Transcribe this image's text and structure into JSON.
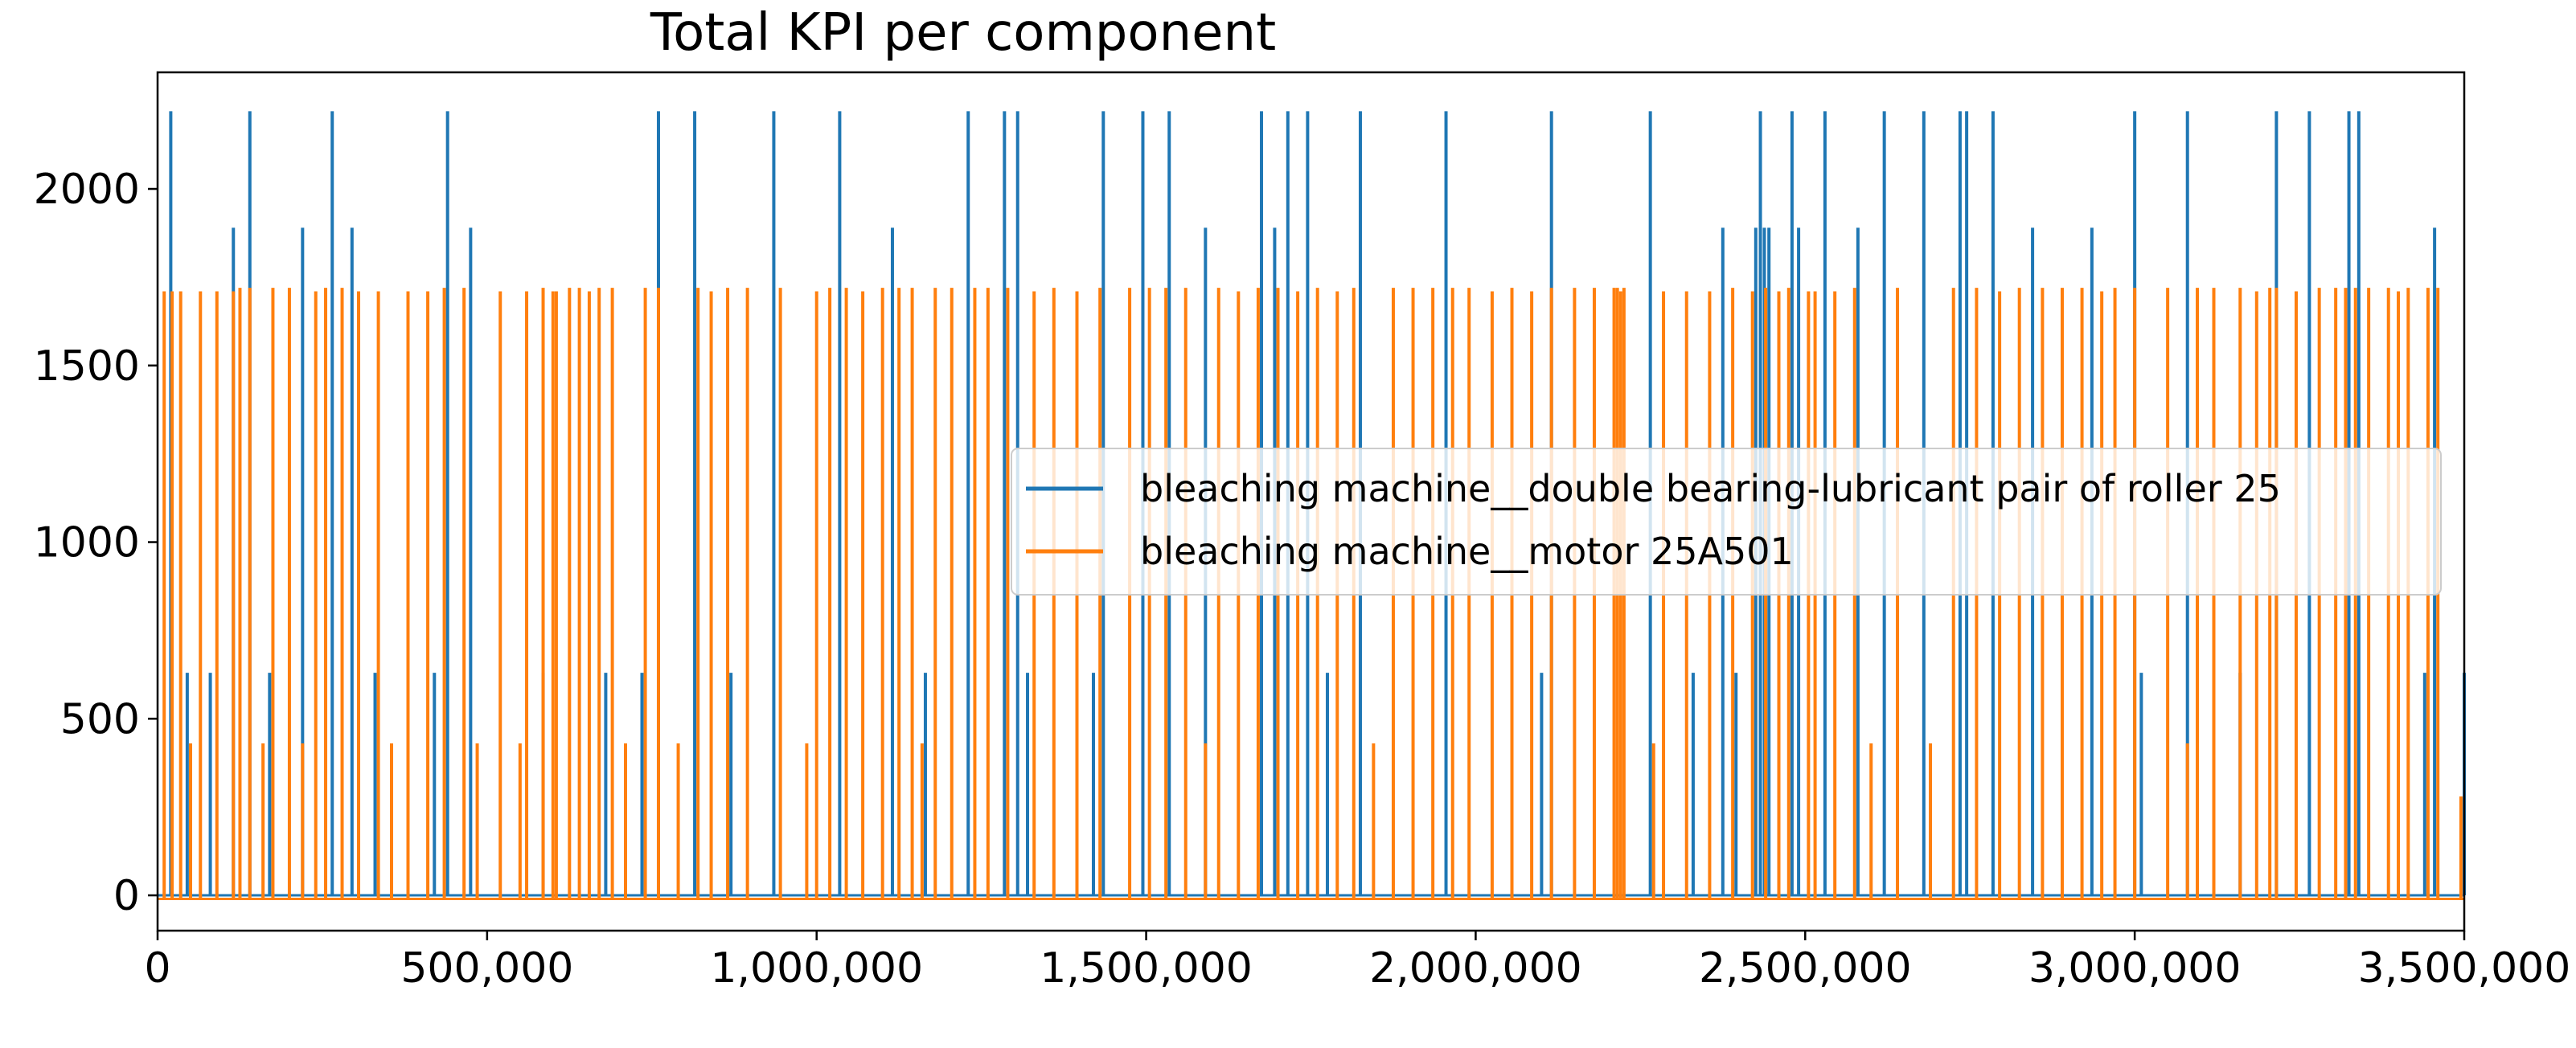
{
  "chart_data": {
    "type": "line",
    "title": "Total KPI per component",
    "xlabel": "",
    "ylabel": "",
    "xlim": [
      0,
      3500000
    ],
    "ylim": [
      -100,
      2330
    ],
    "x_ticks": [
      {
        "value": 0,
        "label": "0"
      },
      {
        "value": 500000,
        "label": "500,000"
      },
      {
        "value": 1000000,
        "label": "1,000,000"
      },
      {
        "value": 1500000,
        "label": "1,500,000"
      },
      {
        "value": 2000000,
        "label": "2,000,000"
      },
      {
        "value": 2500000,
        "label": "2,500,000"
      },
      {
        "value": 3000000,
        "label": "3,000,000"
      },
      {
        "value": 3500000,
        "label": "3,500,000"
      }
    ],
    "y_ticks": [
      {
        "value": 0,
        "label": "0"
      },
      {
        "value": 500,
        "label": "500"
      },
      {
        "value": 1000,
        "label": "1000"
      },
      {
        "value": 1500,
        "label": "1500"
      },
      {
        "value": 2000,
        "label": "2000"
      }
    ],
    "legend_position": "center-right",
    "series": [
      {
        "name": "bleaching machine__double bearing-lubricant pair of roller 25",
        "color": "#1f77b4",
        "baseline": 0,
        "spikes": [
          [
            20000,
            2220
          ],
          [
            45000,
            630
          ],
          [
            80000,
            630
          ],
          [
            115000,
            1890
          ],
          [
            140000,
            2220
          ],
          [
            170000,
            630
          ],
          [
            220000,
            1890
          ],
          [
            265000,
            2220
          ],
          [
            295000,
            1890
          ],
          [
            330000,
            630
          ],
          [
            420000,
            630
          ],
          [
            440000,
            2220
          ],
          [
            475000,
            1890
          ],
          [
            585000,
            630
          ],
          [
            680000,
            630
          ],
          [
            735000,
            630
          ],
          [
            760000,
            2220
          ],
          [
            815000,
            2220
          ],
          [
            870000,
            630
          ],
          [
            935000,
            2220
          ],
          [
            1035000,
            2220
          ],
          [
            1115000,
            1890
          ],
          [
            1165000,
            630
          ],
          [
            1230000,
            2220
          ],
          [
            1285000,
            2220
          ],
          [
            1305000,
            2220
          ],
          [
            1320000,
            630
          ],
          [
            1420000,
            630
          ],
          [
            1435000,
            2220
          ],
          [
            1495000,
            2220
          ],
          [
            1535000,
            2220
          ],
          [
            1590000,
            1890
          ],
          [
            1675000,
            2220
          ],
          [
            1695000,
            1890
          ],
          [
            1715000,
            2220
          ],
          [
            1745000,
            2220
          ],
          [
            1775000,
            630
          ],
          [
            1825000,
            2220
          ],
          [
            1955000,
            2220
          ],
          [
            2100000,
            630
          ],
          [
            2115000,
            2220
          ],
          [
            2265000,
            2220
          ],
          [
            2330000,
            630
          ],
          [
            2375000,
            1890
          ],
          [
            2395000,
            630
          ],
          [
            2425000,
            1890
          ],
          [
            2432000,
            2220
          ],
          [
            2438000,
            1890
          ],
          [
            2445000,
            1890
          ],
          [
            2480000,
            2220
          ],
          [
            2490000,
            1890
          ],
          [
            2530000,
            2220
          ],
          [
            2580000,
            1890
          ],
          [
            2620000,
            2220
          ],
          [
            2680000,
            2220
          ],
          [
            2735000,
            2220
          ],
          [
            2745000,
            2220
          ],
          [
            2785000,
            2220
          ],
          [
            2845000,
            1890
          ],
          [
            2935000,
            1890
          ],
          [
            3000000,
            2220
          ],
          [
            3010000,
            630
          ],
          [
            3080000,
            2220
          ],
          [
            3160000,
            630
          ],
          [
            3215000,
            2220
          ],
          [
            3265000,
            2220
          ],
          [
            3325000,
            2220
          ],
          [
            3340000,
            2220
          ],
          [
            3440000,
            630
          ],
          [
            3455000,
            1890
          ],
          [
            3500000,
            630
          ]
        ]
      },
      {
        "name": "bleaching machine__motor 25A501",
        "color": "#ff7f0e",
        "baseline": -10,
        "spikes": [
          [
            10000,
            1710
          ],
          [
            22000,
            1710
          ],
          [
            35000,
            1710
          ],
          [
            50000,
            430
          ],
          [
            65000,
            1710
          ],
          [
            90000,
            1710
          ],
          [
            115000,
            1710
          ],
          [
            125000,
            1720
          ],
          [
            140000,
            1720
          ],
          [
            160000,
            430
          ],
          [
            175000,
            1720
          ],
          [
            200000,
            1720
          ],
          [
            220000,
            430
          ],
          [
            240000,
            1710
          ],
          [
            255000,
            1720
          ],
          [
            280000,
            1720
          ],
          [
            305000,
            1710
          ],
          [
            335000,
            1710
          ],
          [
            355000,
            430
          ],
          [
            380000,
            1710
          ],
          [
            410000,
            1710
          ],
          [
            435000,
            1720
          ],
          [
            465000,
            1720
          ],
          [
            485000,
            430
          ],
          [
            520000,
            1710
          ],
          [
            550000,
            430
          ],
          [
            560000,
            1710
          ],
          [
            585000,
            1720
          ],
          [
            600000,
            1710
          ],
          [
            605000,
            1710
          ],
          [
            625000,
            1720
          ],
          [
            640000,
            1720
          ],
          [
            655000,
            1710
          ],
          [
            670000,
            1720
          ],
          [
            690000,
            1720
          ],
          [
            710000,
            430
          ],
          [
            740000,
            1720
          ],
          [
            760000,
            1720
          ],
          [
            790000,
            430
          ],
          [
            820000,
            1720
          ],
          [
            840000,
            1710
          ],
          [
            865000,
            1720
          ],
          [
            895000,
            1720
          ],
          [
            945000,
            1720
          ],
          [
            985000,
            430
          ],
          [
            1000000,
            1710
          ],
          [
            1020000,
            1720
          ],
          [
            1045000,
            1720
          ],
          [
            1070000,
            1710
          ],
          [
            1100000,
            1720
          ],
          [
            1125000,
            1720
          ],
          [
            1145000,
            1720
          ],
          [
            1160000,
            430
          ],
          [
            1180000,
            1720
          ],
          [
            1205000,
            1720
          ],
          [
            1240000,
            1720
          ],
          [
            1260000,
            1720
          ],
          [
            1290000,
            1720
          ],
          [
            1330000,
            1710
          ],
          [
            1360000,
            1720
          ],
          [
            1395000,
            1710
          ],
          [
            1430000,
            1720
          ],
          [
            1475000,
            1720
          ],
          [
            1505000,
            1720
          ],
          [
            1530000,
            1720
          ],
          [
            1560000,
            1720
          ],
          [
            1590000,
            430
          ],
          [
            1610000,
            1720
          ],
          [
            1640000,
            1710
          ],
          [
            1670000,
            1720
          ],
          [
            1700000,
            1720
          ],
          [
            1730000,
            1710
          ],
          [
            1760000,
            1720
          ],
          [
            1790000,
            1710
          ],
          [
            1815000,
            1720
          ],
          [
            1845000,
            430
          ],
          [
            1875000,
            1720
          ],
          [
            1905000,
            1720
          ],
          [
            1935000,
            1720
          ],
          [
            1965000,
            1720
          ],
          [
            1990000,
            1720
          ],
          [
            2025000,
            1710
          ],
          [
            2055000,
            1720
          ],
          [
            2085000,
            1710
          ],
          [
            2115000,
            1720
          ],
          [
            2150000,
            1720
          ],
          [
            2180000,
            1720
          ],
          [
            2210000,
            1720
          ],
          [
            2215000,
            1720
          ],
          [
            2220000,
            1710
          ],
          [
            2225000,
            1720
          ],
          [
            2270000,
            430
          ],
          [
            2285000,
            1710
          ],
          [
            2320000,
            1710
          ],
          [
            2355000,
            1710
          ],
          [
            2390000,
            1720
          ],
          [
            2420000,
            1710
          ],
          [
            2440000,
            1720
          ],
          [
            2460000,
            1710
          ],
          [
            2475000,
            1720
          ],
          [
            2505000,
            1710
          ],
          [
            2515000,
            1710
          ],
          [
            2545000,
            1710
          ],
          [
            2575000,
            1720
          ],
          [
            2600000,
            430
          ],
          [
            2640000,
            1720
          ],
          [
            2690000,
            430
          ],
          [
            2725000,
            1720
          ],
          [
            2760000,
            1720
          ],
          [
            2795000,
            1710
          ],
          [
            2825000,
            1720
          ],
          [
            2860000,
            1720
          ],
          [
            2890000,
            1720
          ],
          [
            2920000,
            1720
          ],
          [
            2950000,
            1710
          ],
          [
            2970000,
            1720
          ],
          [
            3000000,
            1720
          ],
          [
            3050000,
            1720
          ],
          [
            3080000,
            430
          ],
          [
            3095000,
            1720
          ],
          [
            3120000,
            1720
          ],
          [
            3160000,
            1720
          ],
          [
            3185000,
            1710
          ],
          [
            3205000,
            1720
          ],
          [
            3215000,
            1720
          ],
          [
            3245000,
            1710
          ],
          [
            3280000,
            1720
          ],
          [
            3305000,
            1720
          ],
          [
            3320000,
            1720
          ],
          [
            3335000,
            1720
          ],
          [
            3355000,
            1720
          ],
          [
            3385000,
            1720
          ],
          [
            3400000,
            1710
          ],
          [
            3415000,
            1720
          ],
          [
            3445000,
            1720
          ],
          [
            3460000,
            1720
          ],
          [
            3495000,
            280
          ]
        ]
      }
    ]
  }
}
